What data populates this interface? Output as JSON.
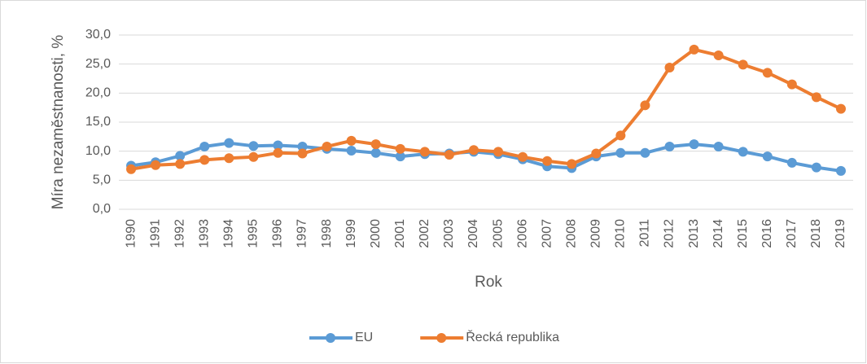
{
  "chart_data": {
    "type": "line",
    "x_label": "Rok",
    "y_label": "Míra nezaměstnanosti, %",
    "categories": [
      "1990",
      "1991",
      "1992",
      "1993",
      "1994",
      "1995",
      "1996",
      "1997",
      "1998",
      "1999",
      "2000",
      "2001",
      "2002",
      "2003",
      "2004",
      "2005",
      "2006",
      "2007",
      "2008",
      "2009",
      "2010",
      "2011",
      "2012",
      "2013",
      "2014",
      "2015",
      "2016",
      "2017",
      "2018",
      "2019"
    ],
    "series": [
      {
        "name": "EU",
        "color": "#5b9bd5",
        "values": [
          7.5,
          8.1,
          9.2,
          10.8,
          11.4,
          10.9,
          11.0,
          10.8,
          10.4,
          10.1,
          9.7,
          9.1,
          9.5,
          9.6,
          9.9,
          9.5,
          8.6,
          7.4,
          7.1,
          9.1,
          9.7,
          9.7,
          10.8,
          11.2,
          10.8,
          9.9,
          9.1,
          8.0,
          7.2,
          6.6
        ]
      },
      {
        "name": "Řecká republika",
        "color": "#ed7d31",
        "values": [
          6.9,
          7.6,
          7.8,
          8.5,
          8.8,
          9.0,
          9.7,
          9.6,
          10.8,
          11.8,
          11.2,
          10.4,
          9.9,
          9.4,
          10.2,
          9.9,
          9.0,
          8.3,
          7.8,
          9.6,
          12.7,
          17.9,
          24.4,
          27.5,
          26.5,
          24.9,
          23.5,
          21.5,
          19.3,
          17.3
        ]
      }
    ],
    "ylim": [
      0,
      30
    ],
    "yticks": [
      {
        "value": 0,
        "label": "0,0"
      },
      {
        "value": 5,
        "label": "5,0"
      },
      {
        "value": 10,
        "label": "10,0"
      },
      {
        "value": 15,
        "label": "15,0"
      },
      {
        "value": 20,
        "label": "20,0"
      },
      {
        "value": 25,
        "label": "25,0"
      },
      {
        "value": 30,
        "label": "30,0"
      }
    ],
    "grid": true,
    "legend": "bottom"
  }
}
